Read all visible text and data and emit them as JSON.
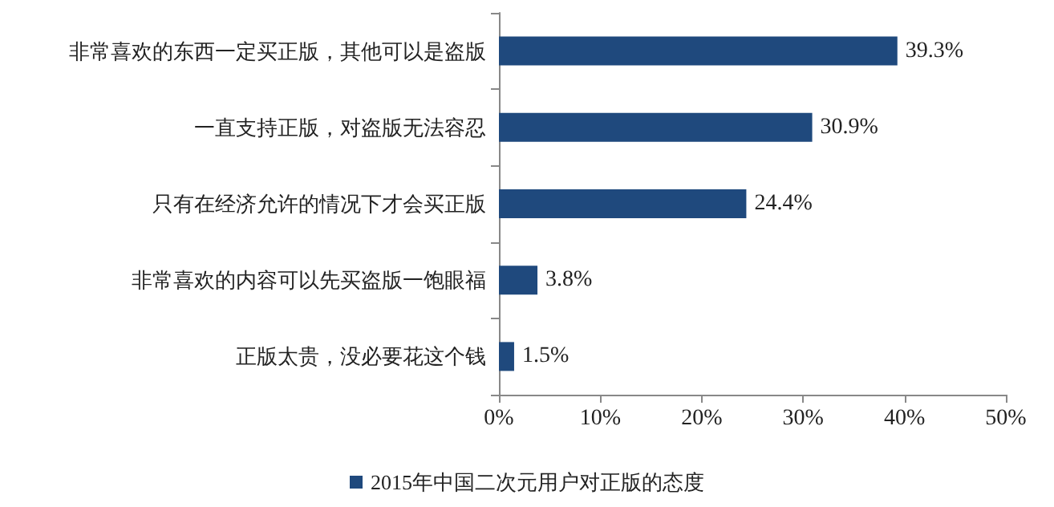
{
  "chart_data": {
    "type": "bar",
    "orientation": "horizontal",
    "categories": [
      "非常喜欢的东西一定买正版，其他可以是盗版",
      "一直支持正版，对盗版无法容忍",
      "只有在经济允许的情况下才会买正版",
      "非常喜欢的内容可以先买盗版一饱眼福",
      "正版太贵，没必要花这个钱"
    ],
    "series": [
      {
        "name": "2015年中国二次元用户对正版的态度",
        "color": "#1f497d",
        "values": [
          39.3,
          30.9,
          24.4,
          3.8,
          1.5
        ],
        "value_labels": [
          "39.3%",
          "30.9%",
          "24.4%",
          "3.8%",
          "1.5%"
        ]
      }
    ],
    "xlim": [
      0,
      50
    ],
    "xticks": [
      {
        "value": 0,
        "label": "0%"
      },
      {
        "value": 10,
        "label": "10%"
      },
      {
        "value": 20,
        "label": "20%"
      },
      {
        "value": 30,
        "label": "30%"
      },
      {
        "value": 40,
        "label": "40%"
      },
      {
        "value": 50,
        "label": "50%"
      }
    ],
    "grid": false,
    "legend": "bottom"
  }
}
